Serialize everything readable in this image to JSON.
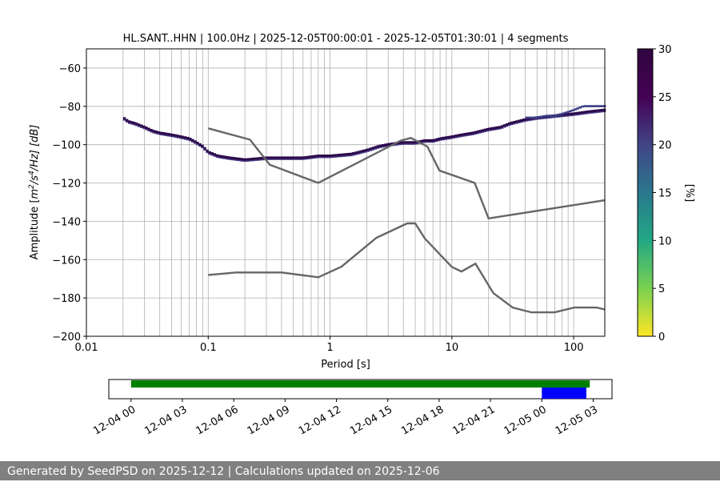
{
  "chart_data": {
    "type": "heatmap",
    "title": "HL.SANT..HHN | 100.0Hz | 2025-12-05T00:00:01 - 2025-12-05T01:30:01 | 4 segments",
    "xlabel": "Period [s]",
    "ylabel_parts": [
      "Amplitude [",
      "m",
      "2",
      "/s",
      "4",
      "/Hz] [dB]"
    ],
    "x_scale": "log",
    "xlim": [
      0.01,
      180
    ],
    "ylim": [
      -200,
      -50
    ],
    "x_ticks": [
      {
        "value": 0.01,
        "label": "0.01"
      },
      {
        "value": 0.1,
        "label": "0.1"
      },
      {
        "value": 1,
        "label": "1"
      },
      {
        "value": 10,
        "label": "10"
      },
      {
        "value": 100,
        "label": "100"
      }
    ],
    "y_ticks": [
      {
        "value": -60,
        "label": "−60"
      },
      {
        "value": -80,
        "label": "−80"
      },
      {
        "value": -100,
        "label": "−100"
      },
      {
        "value": -120,
        "label": "−120"
      },
      {
        "value": -140,
        "label": "−140"
      },
      {
        "value": -160,
        "label": "−160"
      },
      {
        "value": -180,
        "label": "−180"
      },
      {
        "value": -200,
        "label": "−200"
      }
    ],
    "grid": true,
    "psd_band": [
      [
        0.02,
        -86
      ],
      [
        0.022,
        -88
      ],
      [
        0.025,
        -89
      ],
      [
        0.03,
        -91
      ],
      [
        0.035,
        -93
      ],
      [
        0.04,
        -94
      ],
      [
        0.05,
        -95
      ],
      [
        0.06,
        -96
      ],
      [
        0.07,
        -97
      ],
      [
        0.08,
        -99
      ],
      [
        0.09,
        -101
      ],
      [
        0.1,
        -104
      ],
      [
        0.12,
        -106
      ],
      [
        0.15,
        -107
      ],
      [
        0.2,
        -108
      ],
      [
        0.3,
        -107
      ],
      [
        0.4,
        -107
      ],
      [
        0.5,
        -107
      ],
      [
        0.6,
        -107
      ],
      [
        0.8,
        -106
      ],
      [
        1,
        -106
      ],
      [
        1.5,
        -105
      ],
      [
        2,
        -103
      ],
      [
        2.5,
        -101
      ],
      [
        3,
        -100
      ],
      [
        4,
        -99
      ],
      [
        5,
        -99
      ],
      [
        6,
        -98
      ],
      [
        7,
        -98
      ],
      [
        8,
        -97
      ],
      [
        10,
        -96
      ],
      [
        12,
        -95
      ],
      [
        15,
        -94
      ],
      [
        20,
        -92
      ],
      [
        25,
        -91
      ],
      [
        30,
        -89
      ],
      [
        40,
        -87
      ],
      [
        50,
        -86
      ],
      [
        70,
        -85
      ],
      [
        100,
        -84
      ],
      [
        130,
        -83
      ],
      [
        180,
        -82
      ]
    ],
    "psd_upper_branch": [
      [
        40,
        -86
      ],
      [
        50,
        -86
      ],
      [
        60,
        -85
      ],
      [
        70,
        -85
      ],
      [
        80,
        -84
      ],
      [
        90,
        -83
      ],
      [
        100,
        -82
      ],
      [
        120,
        -80
      ],
      [
        180,
        -80
      ]
    ],
    "nhnm": [
      [
        0.1,
        -91.5
      ],
      [
        0.22,
        -97.4
      ],
      [
        0.32,
        -110.5
      ],
      [
        0.8,
        -120
      ],
      [
        3.8,
        -97.9
      ],
      [
        4.6,
        -96.5
      ],
      [
        6.3,
        -101
      ],
      [
        7.9,
        -113.5
      ],
      [
        15.4,
        -120
      ],
      [
        20,
        -138.5
      ],
      [
        180,
        -129
      ]
    ],
    "nlnm": [
      [
        0.1,
        -168
      ],
      [
        0.17,
        -166.7
      ],
      [
        0.4,
        -166.7
      ],
      [
        0.8,
        -169.2
      ],
      [
        1.24,
        -163.7
      ],
      [
        2.4,
        -148.6
      ],
      [
        4.3,
        -141.1
      ],
      [
        5,
        -141.1
      ],
      [
        6,
        -149
      ],
      [
        10,
        -163.8
      ],
      [
        12,
        -166.2
      ],
      [
        15.6,
        -162.1
      ],
      [
        21.9,
        -177.5
      ],
      [
        31.6,
        -185
      ],
      [
        45,
        -187.5
      ],
      [
        70,
        -187.5
      ],
      [
        101,
        -185
      ],
      [
        154,
        -185
      ],
      [
        180,
        -186
      ]
    ],
    "colorbar": {
      "label": "[%]",
      "range": [
        0,
        30
      ],
      "ticks": [
        {
          "value": 0,
          "label": "0"
        },
        {
          "value": 5,
          "label": "5"
        },
        {
          "value": 10,
          "label": "10"
        },
        {
          "value": 15,
          "label": "15"
        },
        {
          "value": 20,
          "label": "20"
        },
        {
          "value": 25,
          "label": "25"
        },
        {
          "value": 30,
          "label": "30"
        }
      ],
      "colors": [
        "#fde725",
        "#7ad151",
        "#22a884",
        "#2a788e",
        "#414487",
        "#440154",
        "#30063f"
      ]
    },
    "coverage": {
      "type": "timeline",
      "time_ticks": [
        {
          "hours": 0,
          "label": "12-04 00"
        },
        {
          "hours": 3,
          "label": "12-04 03"
        },
        {
          "hours": 6,
          "label": "12-04 06"
        },
        {
          "hours": 9,
          "label": "12-04 09"
        },
        {
          "hours": 12,
          "label": "12-04 12"
        },
        {
          "hours": 15,
          "label": "12-04 15"
        },
        {
          "hours": 18,
          "label": "12-04 18"
        },
        {
          "hours": 21,
          "label": "12-04 21"
        },
        {
          "hours": 24,
          "label": "12-05 00"
        },
        {
          "hours": 27,
          "label": "12-05 03"
        }
      ],
      "range_hours": [
        -1.3,
        28.1
      ],
      "data_bar": {
        "start": 0,
        "end": 26.8,
        "color": "#008000"
      },
      "selected_bar": {
        "start": 24,
        "end": 26.6,
        "color": "#0000ff"
      }
    }
  },
  "footer": {
    "text": "Generated by SeedPSD on 2025-12-12 | Calculations updated on 2025-12-06"
  }
}
